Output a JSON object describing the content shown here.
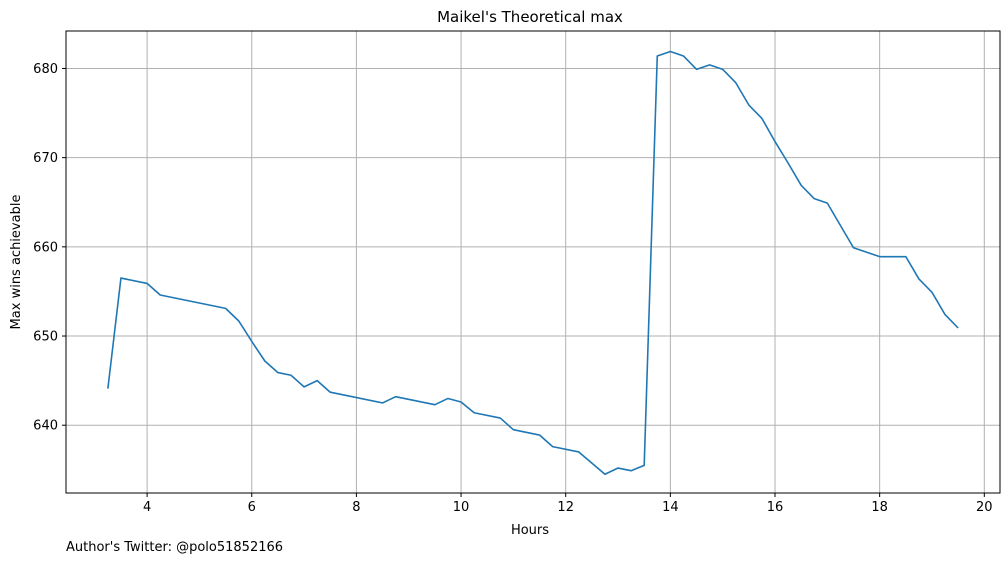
{
  "chart_data": {
    "type": "line",
    "title": "Maikel's Theoretical max",
    "xlabel": "Hours",
    "ylabel": "Max wins achievable",
    "xlim": [
      2.45,
      20.3
    ],
    "ylim": [
      632.4,
      684.2
    ],
    "xticks": [
      4,
      6,
      8,
      10,
      12,
      14,
      16,
      18,
      20
    ],
    "yticks": [
      640,
      650,
      660,
      670,
      680
    ],
    "grid": true,
    "line_color": "#1f77b4",
    "series": [
      {
        "x": [
          3.25,
          3.5,
          4.0,
          4.25,
          5.5,
          5.75,
          6.0,
          6.25,
          6.5,
          6.75,
          7.0,
          7.25,
          7.5,
          8.5,
          8.75,
          9.5,
          9.75,
          10.0,
          10.25,
          10.75,
          11.0,
          11.5,
          11.75,
          12.25,
          12.75,
          13.0,
          13.25,
          13.5,
          13.75,
          14.0,
          14.25,
          14.5,
          14.75,
          15.0,
          15.25,
          15.5,
          15.75,
          16.0,
          16.25,
          16.5,
          16.75,
          17.0,
          17.5,
          18.0,
          18.5,
          18.75,
          19.0,
          19.25,
          19.5
        ],
        "y": [
          644.1,
          656.5,
          655.9,
          654.6,
          653.1,
          651.7,
          649.4,
          647.2,
          645.9,
          645.6,
          644.3,
          645.0,
          643.7,
          642.5,
          643.2,
          642.3,
          643.0,
          642.6,
          641.4,
          640.8,
          639.5,
          638.9,
          637.6,
          637.0,
          634.5,
          635.2,
          634.9,
          635.5,
          681.4,
          681.9,
          681.4,
          679.9,
          680.4,
          679.9,
          678.4,
          675.9,
          674.4,
          671.8,
          669.4,
          666.9,
          665.4,
          664.9,
          659.9,
          658.9,
          658.9,
          656.4,
          654.9,
          652.4,
          650.9
        ]
      }
    ]
  },
  "footer": {
    "author_text": "Author's Twitter: @polo51852166"
  }
}
